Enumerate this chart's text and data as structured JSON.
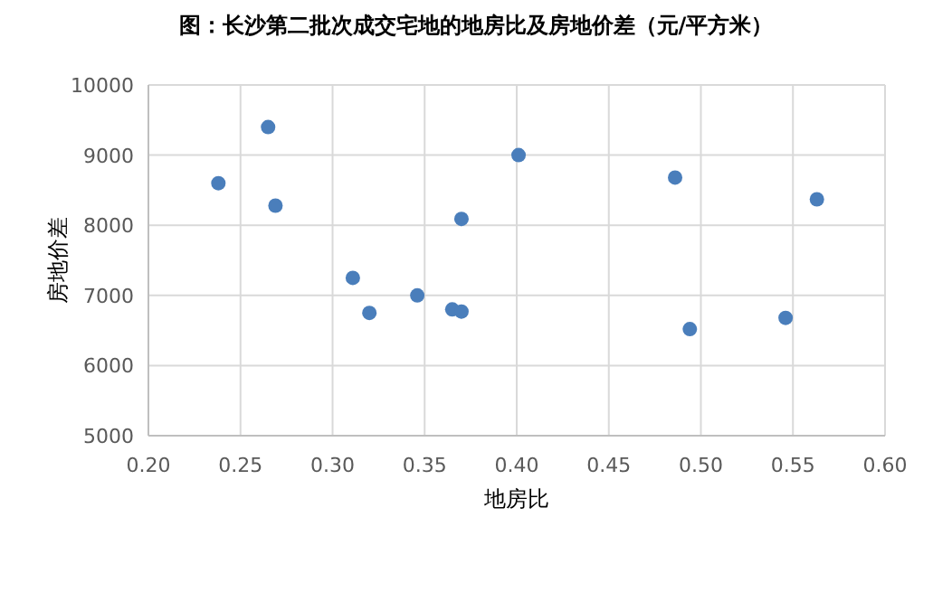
{
  "chart_data": {
    "type": "scatter",
    "title": "图：长沙第二批次成交宅地的地房比及房地价差（元/平方米）",
    "xlabel": "地房比",
    "ylabel": "房地价差",
    "x": [
      0.238,
      0.265,
      0.269,
      0.311,
      0.32,
      0.346,
      0.365,
      0.37,
      0.37,
      0.401,
      0.486,
      0.494,
      0.546,
      0.563
    ],
    "series": [
      {
        "color": "#4a7ebb",
        "values": [
          8600,
          9400,
          8280,
          7250,
          6750,
          7000,
          6800,
          6770,
          8090,
          9000,
          8680,
          6520,
          6680,
          8370
        ]
      }
    ],
    "xlim": [
      0.2,
      0.6
    ],
    "xticks": [
      {
        "value": 0.2,
        "label": "0.20"
      },
      {
        "value": 0.25,
        "label": "0.25"
      },
      {
        "value": 0.3,
        "label": "0.30"
      },
      {
        "value": 0.35,
        "label": "0.35"
      },
      {
        "value": 0.4,
        "label": "0.40"
      },
      {
        "value": 0.45,
        "label": "0.45"
      },
      {
        "value": 0.5,
        "label": "0.50"
      },
      {
        "value": 0.55,
        "label": "0.55"
      },
      {
        "value": 0.6,
        "label": "0.60"
      }
    ],
    "ylim": [
      5000,
      10000
    ],
    "yticks": [
      5000,
      6000,
      7000,
      8000,
      9000,
      10000
    ],
    "grid": true,
    "marker": "circle"
  }
}
